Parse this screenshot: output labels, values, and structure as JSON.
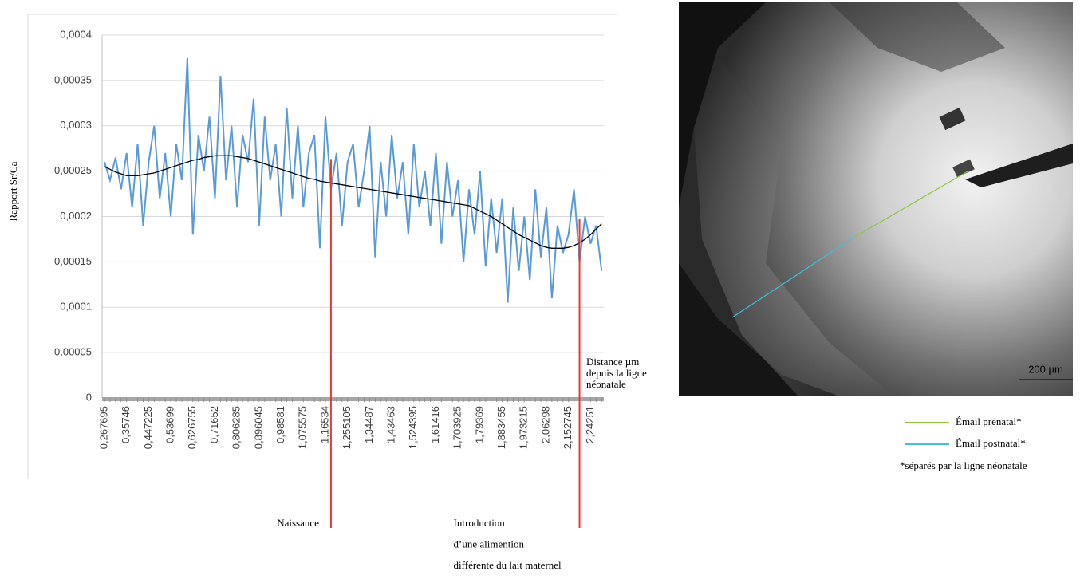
{
  "chart_data": {
    "type": "line",
    "y_label": "Rapport Sr/Ca",
    "x_label": [
      "Distance µm",
      "depuis la ligne",
      "néonatale"
    ],
    "categories": [
      "0,267695",
      null,
      null,
      null,
      "0,35746",
      null,
      null,
      null,
      "0,447225",
      null,
      null,
      null,
      "0,53699",
      null,
      null,
      null,
      "0,626755",
      null,
      null,
      null,
      "0,71652",
      null,
      null,
      null,
      "0,806285",
      null,
      null,
      null,
      "0,896045",
      null,
      null,
      null,
      "0,98581",
      null,
      null,
      null,
      "1,075575",
      null,
      null,
      null,
      "1,16534",
      null,
      null,
      null,
      "1,255105",
      null,
      null,
      null,
      "1,34487",
      null,
      null,
      null,
      "1,43463",
      null,
      null,
      null,
      "1,524395",
      null,
      null,
      null,
      "1,61416",
      null,
      null,
      null,
      "1,703925",
      null,
      null,
      null,
      "1,79369",
      null,
      null,
      null,
      "1,883455",
      null,
      null,
      null,
      "1,973215",
      null,
      null,
      null,
      "2,06298",
      null,
      null,
      null,
      "2,152745",
      null,
      null,
      null,
      "2,24251",
      null,
      null
    ],
    "series": [
      {
        "color": "#5b9bd5",
        "values": [
          0.00026,
          0.00024,
          0.000265,
          0.00023,
          0.00027,
          0.00021,
          0.00028,
          0.00019,
          0.00026,
          0.0003,
          0.00022,
          0.00027,
          0.0002,
          0.00028,
          0.00024,
          0.000375,
          0.00018,
          0.00029,
          0.00025,
          0.00031,
          0.00022,
          0.000355,
          0.00024,
          0.0003,
          0.00021,
          0.00029,
          0.00026,
          0.00033,
          0.00019,
          0.00031,
          0.00024,
          0.00028,
          0.0002,
          0.00032,
          0.00022,
          0.0003,
          0.00021,
          0.00027,
          0.00029,
          0.000165,
          0.00031,
          0.00023,
          0.00027,
          0.00019,
          0.00026,
          0.00028,
          0.00021,
          0.00025,
          0.0003,
          0.000155,
          0.00026,
          0.0002,
          0.00029,
          0.00022,
          0.00026,
          0.00018,
          0.00028,
          0.00021,
          0.00025,
          0.00019,
          0.00027,
          0.00017,
          0.00026,
          0.0002,
          0.00024,
          0.00015,
          0.00023,
          0.00018,
          0.00025,
          0.000145,
          0.00022,
          0.00016,
          0.00022,
          0.000105,
          0.00021,
          0.00014,
          0.0002,
          0.00013,
          0.00023,
          0.000155,
          0.00021,
          0.00011,
          0.00019,
          0.00016,
          0.00018,
          0.00023,
          0.00015,
          0.0002,
          0.00017,
          0.00019,
          0.00014
        ]
      },
      {
        "color": "#000000",
        "values": [
          0.000255,
          0.000252,
          0.000249,
          0.000247,
          0.000245,
          0.000245,
          0.000245,
          0.000246,
          0.000247,
          0.000248,
          0.00025,
          0.000252,
          0.000254,
          0.000256,
          0.000258,
          0.00026,
          0.000262,
          0.000263,
          0.000265,
          0.000266,
          0.000267,
          0.000267,
          0.000267,
          0.000267,
          0.000266,
          0.000265,
          0.000264,
          0.000262,
          0.00026,
          0.000258,
          0.000256,
          0.000254,
          0.000252,
          0.00025,
          0.000248,
          0.000246,
          0.000244,
          0.000242,
          0.000241,
          0.000239,
          0.000238,
          0.000237,
          0.000236,
          0.000235,
          0.000234,
          0.000233,
          0.000232,
          0.000231,
          0.00023,
          0.000229,
          0.000228,
          0.000227,
          0.000226,
          0.000225,
          0.000224,
          0.000223,
          0.000222,
          0.000221,
          0.00022,
          0.000219,
          0.000218,
          0.000217,
          0.000216,
          0.000215,
          0.000214,
          0.000213,
          0.000212,
          0.000209,
          0.000206,
          0.000203,
          0.0002,
          0.000196,
          0.000192,
          0.000188,
          0.000184,
          0.00018,
          0.000177,
          0.000174,
          0.000171,
          0.000168,
          0.000166,
          0.000165,
          0.000165,
          0.000165,
          0.000166,
          0.000168,
          0.000171,
          0.000175,
          0.00018,
          0.000186,
          0.000192
        ]
      }
    ],
    "ylim": [
      0,
      0.0004
    ],
    "yticks": [
      0,
      {
        "value": 5e-05,
        "label": "0,00005"
      },
      {
        "value": 0.0001,
        "label": "0,0001"
      },
      {
        "value": 0.00015,
        "label": "0,00015"
      },
      {
        "value": 0.0002,
        "label": "0,0002"
      },
      {
        "value": 0.00025,
        "label": "0,00025"
      },
      {
        "value": 0.0003,
        "label": "0,0003"
      },
      {
        "value": 0.00035,
        "label": "0,00035"
      },
      {
        "value": 0.0004,
        "label": "0,0004"
      }
    ],
    "grid": true,
    "annotations": [
      {
        "index": 41,
        "color": "#e8392e",
        "text": [
          "Naissance"
        ]
      },
      {
        "index": 86,
        "color": "#e8392e",
        "text": [
          "Introduction",
          "d’une alimention",
          "différente du lait maternel"
        ]
      }
    ]
  },
  "micrograph": {
    "scale_bar": "200 µm",
    "legend": [
      {
        "name": "Émail prénatal*",
        "color": "#8cc63f"
      },
      {
        "name": "Émail postnatal*",
        "color": "#3fc1d9"
      }
    ],
    "note": "*séparés par la ligne néonatale"
  }
}
